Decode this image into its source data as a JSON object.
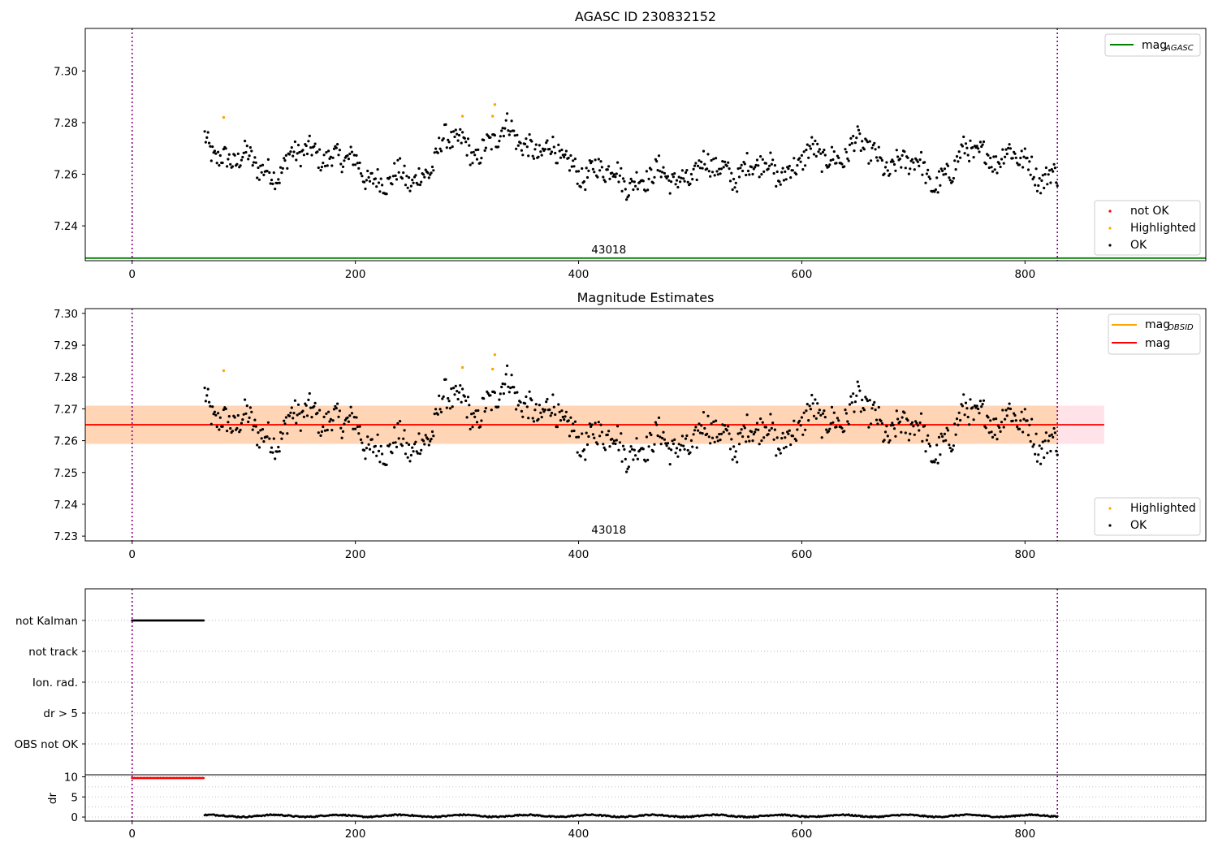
{
  "chart_data": [
    {
      "type": "scatter",
      "title": "AGASC ID 230832152",
      "xlabel": "",
      "ylabel": "",
      "xlim": [
        -42,
        962
      ],
      "ylim": [
        7.2265,
        7.3165
      ],
      "xticks": [
        0,
        200,
        400,
        600,
        800
      ],
      "xtick_labels": [
        "0",
        "200",
        "400",
        "600",
        "800"
      ],
      "yticks": [
        7.24,
        7.26,
        7.28,
        7.3
      ],
      "ytick_labels": [
        "7.24",
        "7.26",
        "7.28",
        "7.30"
      ],
      "vlines": [
        0,
        829
      ],
      "obsid_label": {
        "text": "43018",
        "x": 414
      },
      "hlines": [
        {
          "name": "mag_AGASC",
          "label": "mag",
          "sub": "AGASC",
          "y": 7.2275,
          "color": "#008000"
        }
      ],
      "line_legend": [
        {
          "label": "mag",
          "sub": "AGASC",
          "color": "#008000"
        }
      ],
      "marker_legend": [
        {
          "label": "not OK",
          "color": "#ff0000"
        },
        {
          "label": "Highlighted",
          "color": "#ffa500"
        },
        {
          "label": "OK",
          "color": "#000000"
        }
      ],
      "series": [
        {
          "name": "OK",
          "generator": "mag_trace",
          "x_range": [
            65,
            829
          ],
          "color": "#000000"
        },
        {
          "name": "Highlighted",
          "color": "#ffa500",
          "x": [
            82,
            296,
            323,
            325
          ],
          "y": [
            7.282,
            7.2825,
            7.2825,
            7.287
          ]
        }
      ],
      "grid": false
    },
    {
      "type": "scatter",
      "title": "Magnitude Estimates",
      "xlabel": "",
      "ylabel": "",
      "xlim": [
        -42,
        962
      ],
      "ylim": [
        7.2285,
        7.3015
      ],
      "xticks": [
        0,
        200,
        400,
        600,
        800
      ],
      "xtick_labels": [
        "0",
        "200",
        "400",
        "600",
        "800"
      ],
      "yticks": [
        7.23,
        7.24,
        7.25,
        7.26,
        7.27,
        7.28,
        7.29,
        7.3
      ],
      "ytick_labels": [
        "7.23",
        "7.24",
        "7.25",
        "7.26",
        "7.27",
        "7.28",
        "7.29",
        "7.30"
      ],
      "vlines": [
        0,
        829
      ],
      "obsid_label": {
        "text": "43018",
        "x": 414
      },
      "bands": [
        {
          "name": "mag band",
          "y": [
            7.259,
            7.271
          ],
          "x": [
            -42,
            871
          ],
          "color": "#ffc0cb",
          "opacity": 0.45
        },
        {
          "name": "mag_OBSID band",
          "y": [
            7.259,
            7.271
          ],
          "x": [
            -42,
            829
          ],
          "color": "#ffa500",
          "opacity": 0.22
        }
      ],
      "hlines": [
        {
          "name": "mag_OBSID",
          "y": 7.265,
          "x": [
            -42,
            829
          ],
          "color": "#ffa500"
        },
        {
          "name": "mag",
          "y": 7.265,
          "x": [
            -42,
            871
          ],
          "color": "#ff0000"
        }
      ],
      "line_legend": [
        {
          "label": "mag",
          "sub": "OBSID",
          "color": "#ffa500"
        },
        {
          "label": "mag",
          "sub": "",
          "color": "#ff0000"
        }
      ],
      "marker_legend": [
        {
          "label": "Highlighted",
          "color": "#ffa500"
        },
        {
          "label": "OK",
          "color": "#000000"
        }
      ],
      "series": [
        {
          "name": "OK",
          "generator": "mag_trace",
          "x_range": [
            65,
            829
          ],
          "color": "#000000"
        },
        {
          "name": "Highlighted",
          "color": "#ffa500",
          "x": [
            82,
            296,
            323,
            325
          ],
          "y": [
            7.282,
            7.283,
            7.2825,
            7.287
          ]
        }
      ],
      "grid": false
    },
    {
      "type": "scatter",
      "title": "",
      "xlim": [
        -42,
        962
      ],
      "xticks": [
        0,
        200,
        400,
        600,
        800
      ],
      "xtick_labels": [
        "0",
        "200",
        "400",
        "600",
        "800"
      ],
      "vlines": [
        0,
        829
      ],
      "flags": {
        "categories": [
          "not Kalman",
          "not track",
          "Ion. rad.",
          "dr > 5",
          "OBS not OK"
        ],
        "series": [
          {
            "name": "not Kalman",
            "x_range": [
              0,
              64
            ],
            "color": "#000000"
          }
        ]
      },
      "dr": {
        "ylabel": "dr",
        "ylim": [
          -1,
          10.5
        ],
        "yticks": [
          0,
          5,
          10
        ],
        "ytick_labels": [
          "0",
          "5",
          "10"
        ],
        "series": [
          {
            "name": "dr flagged",
            "x_range": [
              0,
              64
            ],
            "y": 9.7,
            "color": "#ff0000"
          },
          {
            "name": "dr",
            "x_range": [
              65,
              829
            ],
            "y_approx": 0.3,
            "color": "#000000"
          }
        ]
      },
      "grid": true
    }
  ]
}
